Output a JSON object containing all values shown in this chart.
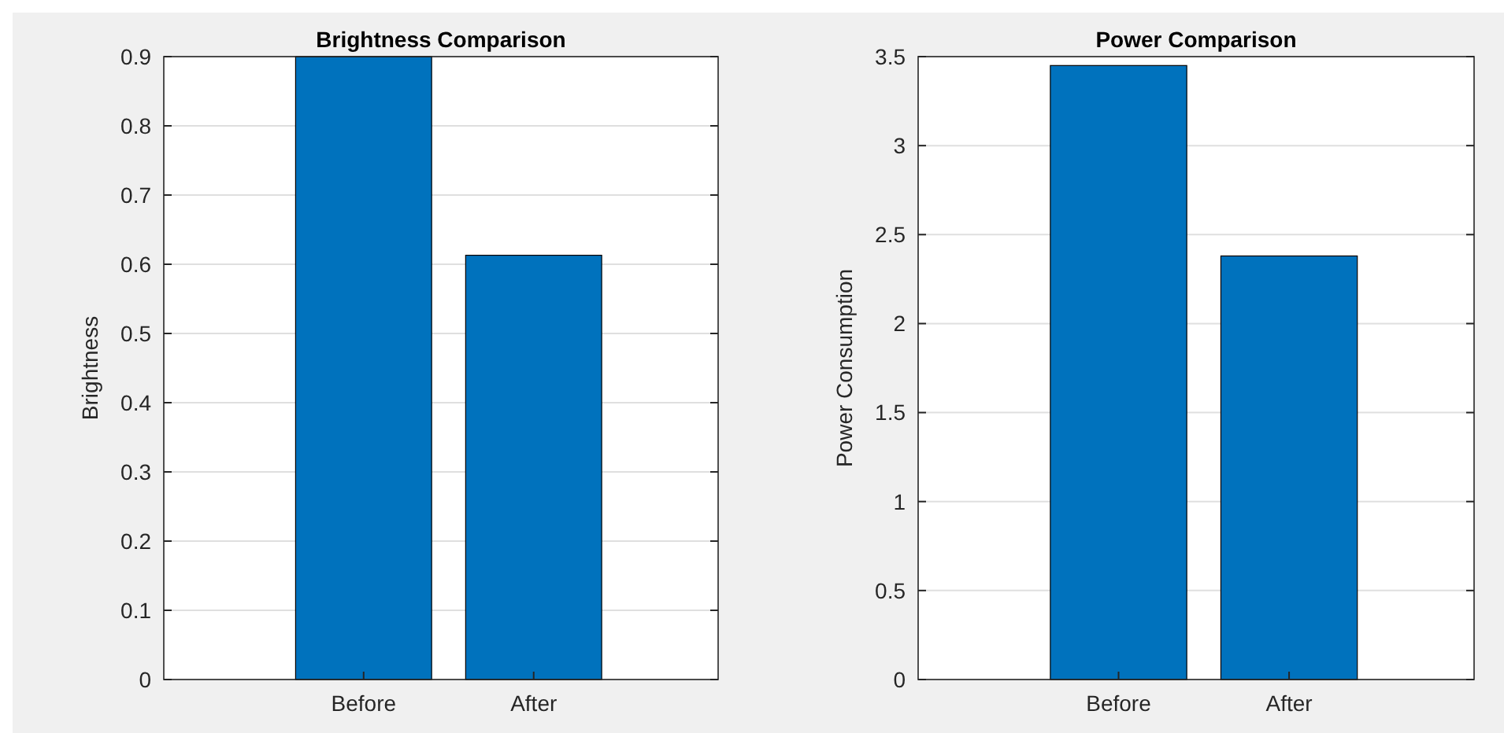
{
  "chart_data": [
    {
      "type": "bar",
      "title": "Brightness Comparison",
      "ylabel": "Brightness",
      "categories": [
        "Before",
        "After"
      ],
      "values": [
        0.9,
        0.613
      ],
      "color": "#0072bd",
      "ylim": [
        0,
        0.9
      ],
      "yticks": [
        0,
        0.1,
        0.2,
        0.3,
        0.4,
        0.5,
        0.6,
        0.7,
        0.8,
        0.9
      ],
      "grid": "y"
    },
    {
      "type": "bar",
      "title": "Power Comparison",
      "ylabel": "Power Consumption",
      "categories": [
        "Before",
        "After"
      ],
      "values": [
        3.45,
        2.38
      ],
      "color": "#0072bd",
      "ylim": [
        0,
        3.5
      ],
      "yticks": [
        0,
        0.5,
        1,
        1.5,
        2,
        2.5,
        3,
        3.5
      ],
      "grid": "y"
    }
  ]
}
